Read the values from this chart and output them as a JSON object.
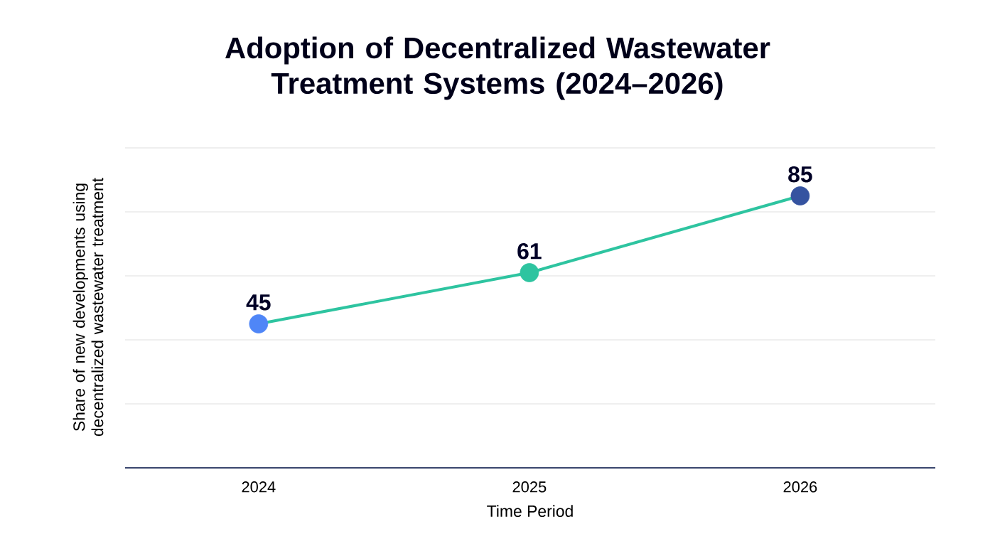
{
  "chart_data": {
    "type": "line",
    "title": "Adoption of Decentralized Wastewater Treatment Systems (2024–2026)",
    "xlabel": "Time Period",
    "ylabel": "Share of new developments using decentralized wastewater treatment",
    "categories": [
      "2024",
      "2025",
      "2026"
    ],
    "values": [
      45,
      61,
      85
    ],
    "color": "#2ec4a0",
    "colors": [
      "#4f86f7",
      "#2ec4a0",
      "#3553a0"
    ],
    "marker": "circle",
    "data_labels": true,
    "ylim": [
      0,
      100
    ],
    "tick_labels": "x",
    "grid": "y"
  }
}
